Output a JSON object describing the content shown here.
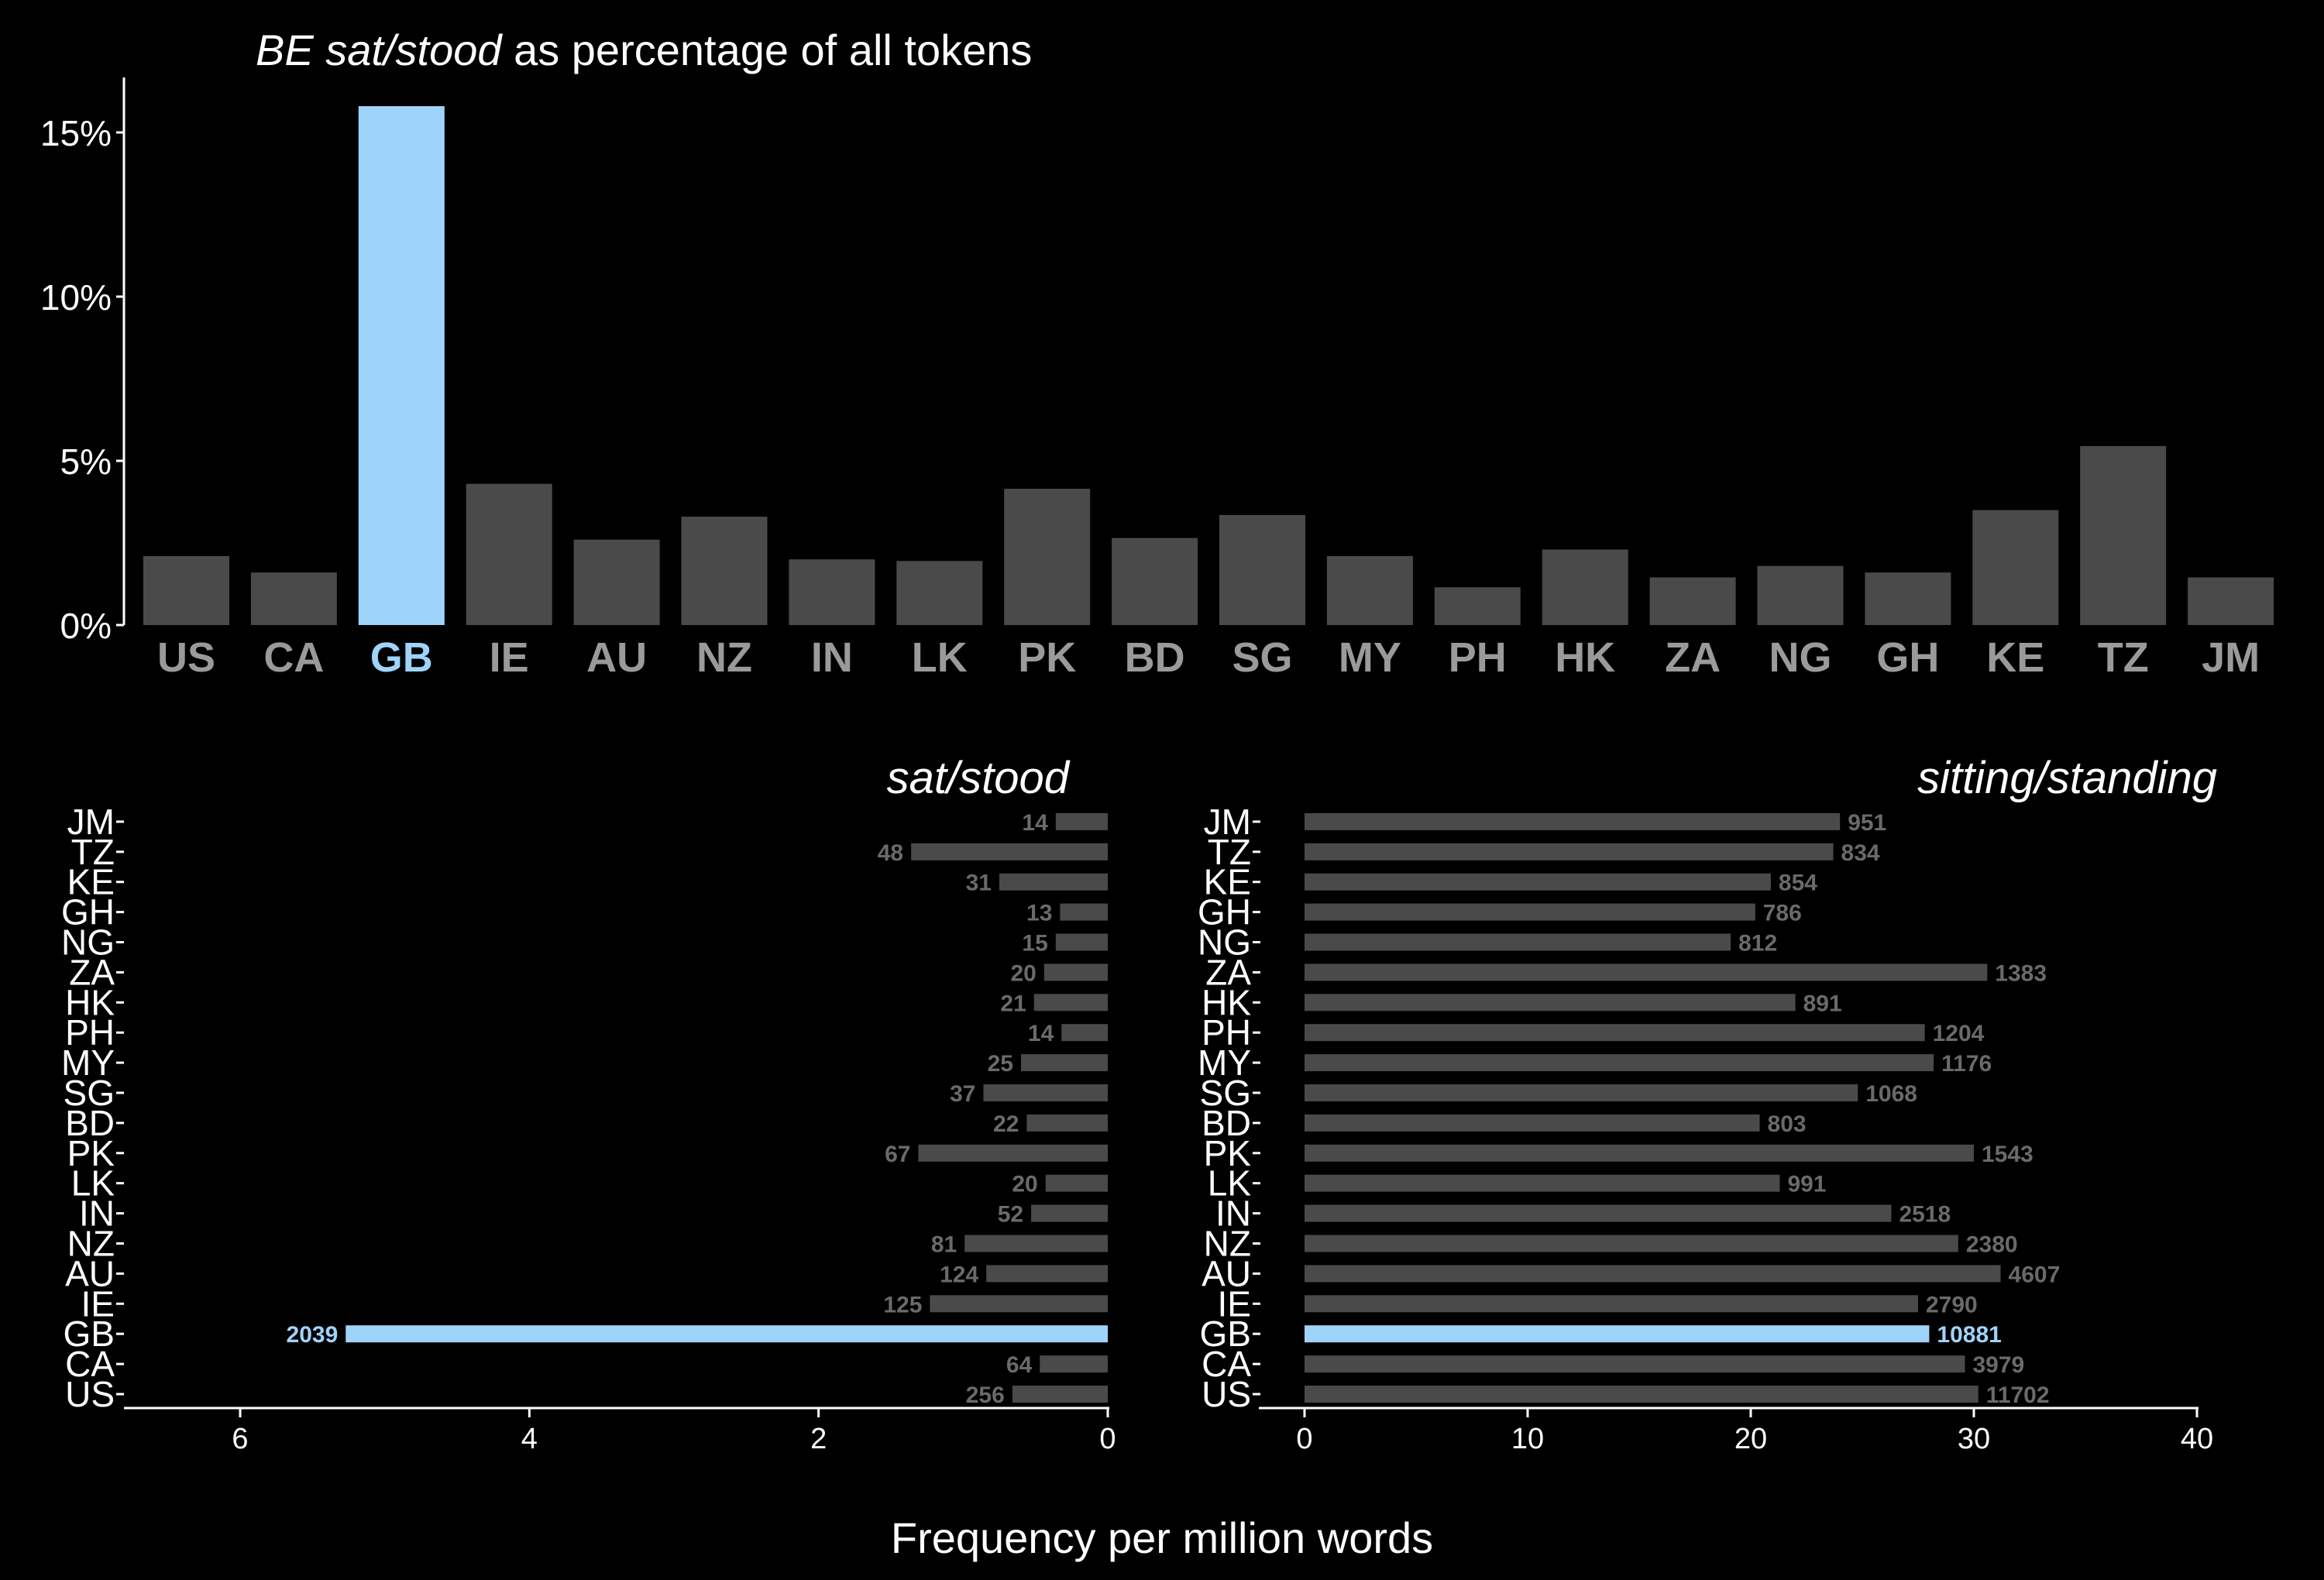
{
  "colors": {
    "background": "#000000",
    "bar": "#4a4a4a",
    "highlight": "#9fd4fa",
    "axis": "#ffffff",
    "muted_label": "#9a9a9a",
    "bar_label": "#6a6a6a"
  },
  "top_title": {
    "italic": "BE sat/stood",
    "rest": "as percentage of all tokens"
  },
  "left_title": "sat/stood",
  "right_title": "sitting/standing",
  "x_axis_label": "Frequency per million words",
  "chart_data": [
    {
      "type": "bar",
      "title": "BE sat/stood as percentage of all tokens",
      "categories": [
        "US",
        "CA",
        "GB",
        "IE",
        "AU",
        "NZ",
        "IN",
        "LK",
        "PK",
        "BD",
        "SG",
        "MY",
        "PH",
        "HK",
        "ZA",
        "NG",
        "GH",
        "KE",
        "TZ",
        "JM"
      ],
      "values": [
        2.1,
        1.6,
        15.8,
        4.3,
        2.6,
        3.3,
        2.0,
        1.95,
        4.15,
        2.65,
        3.35,
        2.1,
        1.15,
        2.3,
        1.45,
        1.8,
        1.6,
        3.5,
        5.45,
        1.45
      ],
      "highlight": "GB",
      "ylim": [
        0,
        16
      ],
      "yticks": [
        0,
        5,
        10,
        15
      ],
      "ytick_labels": [
        "0%",
        "5%",
        "10%",
        "15%"
      ],
      "grid": false
    },
    {
      "type": "bar",
      "orientation": "horizontal",
      "title": "sat/stood",
      "xlabel": "Frequency per million words",
      "categories": [
        "US",
        "CA",
        "GB",
        "IE",
        "AU",
        "NZ",
        "IN",
        "LK",
        "PK",
        "BD",
        "SG",
        "MY",
        "PH",
        "HK",
        "ZA",
        "NG",
        "GH",
        "KE",
        "TZ",
        "JM"
      ],
      "values": [
        0.66,
        0.47,
        5.27,
        1.23,
        0.84,
        0.99,
        0.53,
        0.43,
        1.31,
        0.56,
        0.86,
        0.6,
        0.32,
        0.51,
        0.44,
        0.36,
        0.33,
        0.75,
        1.36,
        0.36
      ],
      "data_labels": [
        "256",
        "64",
        "2039",
        "125",
        "124",
        "81",
        "52",
        "20",
        "67",
        "22",
        "37",
        "25",
        "14",
        "21",
        "20",
        "15",
        "13",
        "31",
        "48",
        "14"
      ],
      "highlight": "GB",
      "xlim": [
        0,
        6.8
      ],
      "xticks": [
        0,
        2,
        4,
        6
      ],
      "x_reversed": true,
      "grid": false
    },
    {
      "type": "bar",
      "orientation": "horizontal",
      "title": "sitting/standing",
      "xlabel": "Frequency per million words",
      "categories": [
        "US",
        "CA",
        "GB",
        "IE",
        "AU",
        "NZ",
        "IN",
        "LK",
        "PK",
        "BD",
        "SG",
        "MY",
        "PH",
        "HK",
        "ZA",
        "NG",
        "GH",
        "KE",
        "TZ",
        "JM"
      ],
      "values": [
        30.2,
        29.6,
        28.0,
        27.5,
        31.2,
        29.3,
        26.3,
        21.3,
        30.0,
        20.4,
        24.8,
        28.2,
        27.8,
        22.0,
        30.6,
        19.1,
        20.2,
        20.9,
        23.7,
        24.0
      ],
      "data_labels": [
        "11702",
        "3979",
        "10881",
        "2790",
        "4607",
        "2380",
        "2518",
        "991",
        "1543",
        "803",
        "1068",
        "1176",
        "1204",
        "891",
        "1383",
        "812",
        "786",
        "854",
        "834",
        "951"
      ],
      "highlight": "GB",
      "xlim": [
        -2,
        40
      ],
      "xticks": [
        0,
        10,
        20,
        30,
        40
      ],
      "grid": false
    }
  ]
}
